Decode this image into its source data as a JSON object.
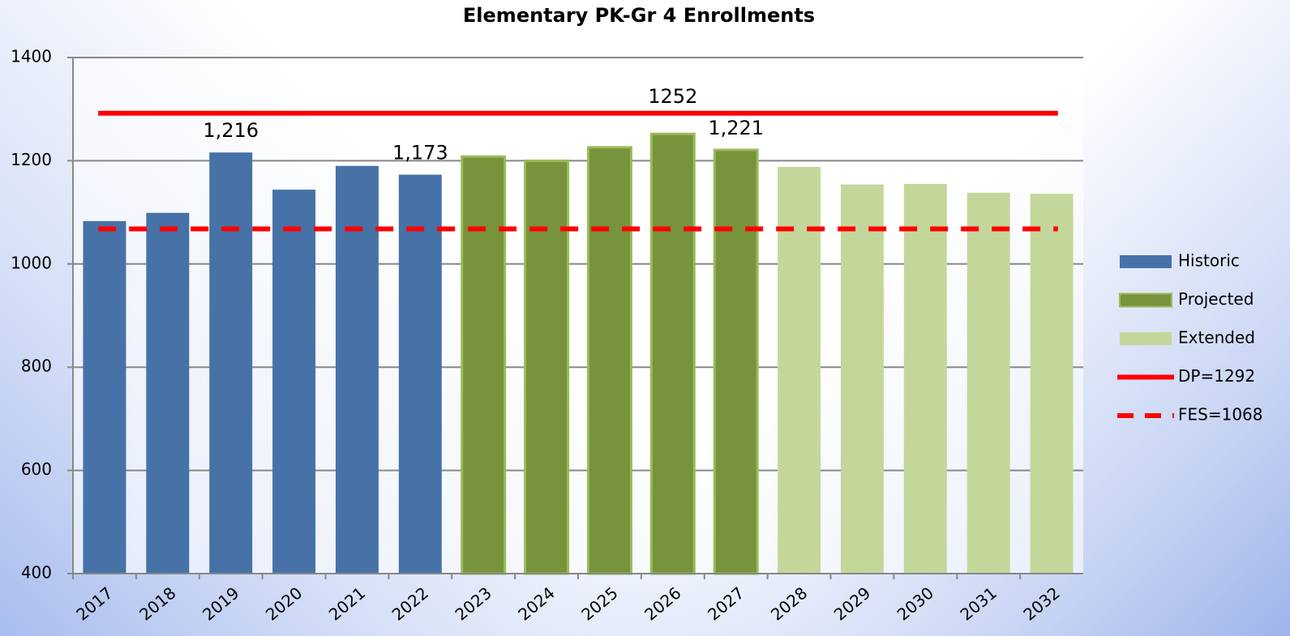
{
  "chart_data": {
    "type": "bar",
    "title": "Elementary PK-Gr 4 Enrollments",
    "categories": [
      "2017",
      "2018",
      "2019",
      "2020",
      "2021",
      "2022",
      "2023",
      "2024",
      "2025",
      "2026",
      "2027",
      "2028",
      "2029",
      "2030",
      "2031",
      "2032"
    ],
    "series": [
      {
        "name": "Historic",
        "color": "#4672a8",
        "values": [
          1083,
          1099,
          1216,
          1144,
          1190,
          1173,
          null,
          null,
          null,
          null,
          null,
          null,
          null,
          null,
          null,
          null
        ],
        "value_labels": [
          null,
          null,
          "1,216",
          null,
          null,
          "1,173",
          null,
          null,
          null,
          null,
          null,
          null,
          null,
          null,
          null,
          null
        ]
      },
      {
        "name": "Projected",
        "color": "#77933c",
        "edge_color": "#9bbb59",
        "values": [
          null,
          null,
          null,
          null,
          null,
          null,
          1208,
          1200,
          1226,
          1252,
          1221,
          null,
          null,
          null,
          null,
          null
        ],
        "value_labels": [
          null,
          null,
          null,
          null,
          null,
          null,
          null,
          null,
          null,
          "1252",
          "1,221",
          null,
          null,
          null,
          null,
          null
        ]
      },
      {
        "name": "Extended",
        "color": "#c4d79b",
        "values": [
          null,
          null,
          null,
          null,
          null,
          null,
          null,
          null,
          null,
          null,
          null,
          1188,
          1154,
          1155,
          1138,
          1136
        ]
      }
    ],
    "lines": [
      {
        "name": "DP=1292",
        "value": 1292,
        "color": "#ff0000",
        "style": "solid"
      },
      {
        "name": "FES=1068",
        "value": 1068,
        "color": "#ff0000",
        "style": "dashed"
      }
    ],
    "ylim": [
      400,
      1400
    ],
    "yticks": [
      400,
      600,
      800,
      1000,
      1200,
      1400
    ],
    "grid": true,
    "legend": "right"
  }
}
